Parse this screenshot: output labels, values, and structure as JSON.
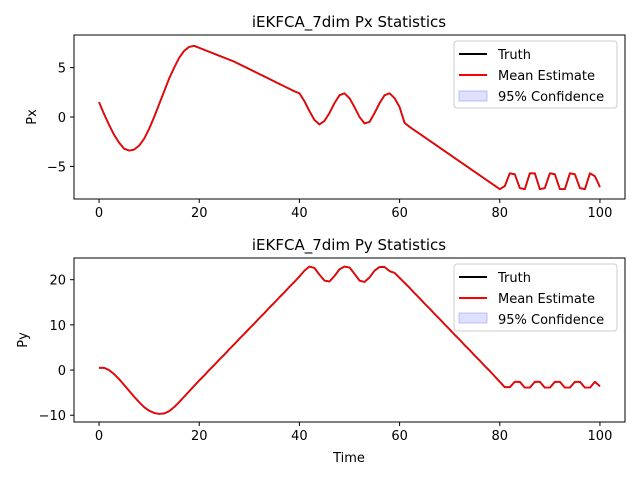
{
  "chart_data": [
    {
      "type": "line",
      "title": "iEKFCA_7dim Px Statistics",
      "xlabel": "",
      "ylabel": "Px",
      "xlim": [
        -5,
        105
      ],
      "ylim": [
        -8.3,
        8.3
      ],
      "xticks": [
        0,
        20,
        40,
        60,
        80,
        100
      ],
      "yticks": [
        -5,
        0,
        5
      ],
      "legend": {
        "position": "top-right",
        "entries": [
          "Truth",
          "Mean Estimate",
          "95% Confidence"
        ]
      },
      "series": [
        {
          "name": "Truth",
          "color": "#000000",
          "kind": "line",
          "x": [
            0,
            1,
            2,
            3,
            4,
            5,
            6,
            7,
            8,
            9,
            10,
            11,
            12,
            13,
            14,
            15,
            16,
            17,
            18,
            19,
            20,
            21,
            22,
            23,
            24,
            25,
            26,
            27,
            28,
            29,
            30,
            31,
            32,
            33,
            34,
            35,
            36,
            37,
            38,
            39,
            40,
            41,
            42,
            43,
            44,
            45,
            46,
            47,
            48,
            49,
            50,
            51,
            52,
            53,
            54,
            55,
            56,
            57,
            58,
            59,
            60,
            61,
            62,
            63,
            64,
            65,
            66,
            67,
            68,
            69,
            70,
            71,
            72,
            73,
            74,
            75,
            76,
            77,
            78,
            79,
            80,
            81,
            82,
            83,
            84,
            85,
            86,
            87,
            88,
            89,
            90,
            91,
            92,
            93,
            94,
            95,
            96,
            97,
            98,
            99,
            100
          ],
          "y": [
            1.5,
            0.3,
            -0.8,
            -1.8,
            -2.6,
            -3.2,
            -3.4,
            -3.3,
            -2.9,
            -2.2,
            -1.2,
            -0.0,
            1.3,
            2.6,
            3.9,
            5.0,
            6.0,
            6.7,
            7.1,
            7.2,
            7.0,
            6.8,
            6.6,
            6.4,
            6.2,
            6.0,
            5.8,
            5.6,
            5.35,
            5.1,
            4.85,
            4.6,
            4.35,
            4.1,
            3.85,
            3.6,
            3.35,
            3.1,
            2.85,
            2.6,
            2.4,
            1.6,
            0.6,
            -0.3,
            -0.75,
            -0.4,
            0.4,
            1.4,
            2.2,
            2.4,
            1.9,
            1.0,
            0.0,
            -0.65,
            -0.5,
            0.4,
            1.4,
            2.2,
            2.4,
            1.9,
            1.0,
            -0.6,
            -1.0,
            -1.35,
            -1.7,
            -2.05,
            -2.4,
            -2.75,
            -3.1,
            -3.45,
            -3.8,
            -4.15,
            -4.5,
            -4.85,
            -5.2,
            -5.55,
            -5.9,
            -6.25,
            -6.6,
            -6.95,
            -7.3,
            -7.0,
            -5.7,
            -5.8,
            -7.2,
            -7.3,
            -5.7,
            -5.7,
            -7.3,
            -7.2,
            -5.7,
            -5.8,
            -7.3,
            -7.3,
            -5.7,
            -5.8,
            -7.2,
            -7.3,
            -5.7,
            -6.0,
            -7.1
          ]
        },
        {
          "name": "Mean Estimate",
          "color": "#ff0000",
          "kind": "line",
          "x": [
            0,
            1,
            2,
            3,
            4,
            5,
            6,
            7,
            8,
            9,
            10,
            11,
            12,
            13,
            14,
            15,
            16,
            17,
            18,
            19,
            20,
            21,
            22,
            23,
            24,
            25,
            26,
            27,
            28,
            29,
            30,
            31,
            32,
            33,
            34,
            35,
            36,
            37,
            38,
            39,
            40,
            41,
            42,
            43,
            44,
            45,
            46,
            47,
            48,
            49,
            50,
            51,
            52,
            53,
            54,
            55,
            56,
            57,
            58,
            59,
            60,
            61,
            62,
            63,
            64,
            65,
            66,
            67,
            68,
            69,
            70,
            71,
            72,
            73,
            74,
            75,
            76,
            77,
            78,
            79,
            80,
            81,
            82,
            83,
            84,
            85,
            86,
            87,
            88,
            89,
            90,
            91,
            92,
            93,
            94,
            95,
            96,
            97,
            98,
            99,
            100
          ],
          "y": [
            1.5,
            0.3,
            -0.8,
            -1.8,
            -2.6,
            -3.2,
            -3.4,
            -3.3,
            -2.9,
            -2.2,
            -1.2,
            -0.0,
            1.3,
            2.6,
            3.9,
            5.0,
            6.0,
            6.7,
            7.1,
            7.2,
            7.0,
            6.8,
            6.6,
            6.4,
            6.2,
            6.0,
            5.8,
            5.6,
            5.35,
            5.1,
            4.85,
            4.6,
            4.35,
            4.1,
            3.85,
            3.6,
            3.35,
            3.1,
            2.85,
            2.6,
            2.4,
            1.6,
            0.6,
            -0.3,
            -0.75,
            -0.4,
            0.4,
            1.4,
            2.2,
            2.4,
            1.9,
            1.0,
            0.0,
            -0.65,
            -0.5,
            0.4,
            1.4,
            2.2,
            2.4,
            1.9,
            1.0,
            -0.6,
            -1.0,
            -1.35,
            -1.7,
            -2.05,
            -2.4,
            -2.75,
            -3.1,
            -3.45,
            -3.8,
            -4.15,
            -4.5,
            -4.85,
            -5.2,
            -5.55,
            -5.9,
            -6.25,
            -6.6,
            -6.95,
            -7.3,
            -7.0,
            -5.7,
            -5.8,
            -7.2,
            -7.3,
            -5.7,
            -5.7,
            -7.3,
            -7.2,
            -5.7,
            -5.8,
            -7.3,
            -7.3,
            -5.7,
            -5.8,
            -7.2,
            -7.3,
            -5.7,
            -6.0,
            -7.1
          ]
        }
      ]
    },
    {
      "type": "line",
      "title": "iEKFCA_7dim Py Statistics",
      "xlabel": "Time",
      "ylabel": "Py",
      "xlim": [
        -5,
        105
      ],
      "ylim": [
        -11.5,
        24.8
      ],
      "xticks": [
        0,
        20,
        40,
        60,
        80,
        100
      ],
      "yticks": [
        -10,
        0,
        10,
        20
      ],
      "legend": {
        "position": "top-right",
        "entries": [
          "Truth",
          "Mean Estimate",
          "95% Confidence"
        ]
      },
      "series": [
        {
          "name": "Truth",
          "color": "#000000",
          "kind": "line",
          "x": [
            0,
            1,
            2,
            3,
            4,
            5,
            6,
            7,
            8,
            9,
            10,
            11,
            12,
            13,
            14,
            15,
            16,
            17,
            18,
            19,
            20,
            21,
            22,
            23,
            24,
            25,
            26,
            27,
            28,
            29,
            30,
            31,
            32,
            33,
            34,
            35,
            36,
            37,
            38,
            39,
            40,
            41,
            42,
            43,
            44,
            45,
            46,
            47,
            48,
            49,
            50,
            51,
            52,
            53,
            54,
            55,
            56,
            57,
            58,
            59,
            60,
            61,
            62,
            63,
            64,
            65,
            66,
            67,
            68,
            69,
            70,
            71,
            72,
            73,
            74,
            75,
            76,
            77,
            78,
            79,
            80,
            81,
            82,
            83,
            84,
            85,
            86,
            87,
            88,
            89,
            90,
            91,
            92,
            93,
            94,
            95,
            96,
            97,
            98,
            99,
            100
          ],
          "y": [
            0.5,
            0.5,
            0.0,
            -0.9,
            -2.0,
            -3.3,
            -4.6,
            -5.9,
            -7.1,
            -8.2,
            -9.0,
            -9.5,
            -9.7,
            -9.6,
            -9.1,
            -8.2,
            -7.1,
            -5.9,
            -4.7,
            -3.5,
            -2.3,
            -1.2,
            0.0,
            1.1,
            2.3,
            3.4,
            4.6,
            5.7,
            6.9,
            8.0,
            9.2,
            10.3,
            11.5,
            12.6,
            13.8,
            14.9,
            16.1,
            17.2,
            18.4,
            19.5,
            20.7,
            22.0,
            22.9,
            22.6,
            21.1,
            19.8,
            19.6,
            20.8,
            22.3,
            22.9,
            22.7,
            21.3,
            19.8,
            19.5,
            20.5,
            22.0,
            22.8,
            22.8,
            21.9,
            21.5,
            20.4,
            19.3,
            18.2,
            17.0,
            15.9,
            14.7,
            13.6,
            12.4,
            11.3,
            10.1,
            9.0,
            7.8,
            6.7,
            5.5,
            4.4,
            3.2,
            2.1,
            0.9,
            -0.2,
            -1.4,
            -2.6,
            -3.8,
            -3.8,
            -2.6,
            -2.6,
            -3.9,
            -3.9,
            -2.6,
            -2.6,
            -3.9,
            -3.9,
            -2.6,
            -2.6,
            -3.9,
            -3.9,
            -2.6,
            -2.6,
            -3.9,
            -3.9,
            -2.6,
            -3.6
          ]
        },
        {
          "name": "Mean Estimate",
          "color": "#ff0000",
          "kind": "line",
          "x": [
            0,
            1,
            2,
            3,
            4,
            5,
            6,
            7,
            8,
            9,
            10,
            11,
            12,
            13,
            14,
            15,
            16,
            17,
            18,
            19,
            20,
            21,
            22,
            23,
            24,
            25,
            26,
            27,
            28,
            29,
            30,
            31,
            32,
            33,
            34,
            35,
            36,
            37,
            38,
            39,
            40,
            41,
            42,
            43,
            44,
            45,
            46,
            47,
            48,
            49,
            50,
            51,
            52,
            53,
            54,
            55,
            56,
            57,
            58,
            59,
            60,
            61,
            62,
            63,
            64,
            65,
            66,
            67,
            68,
            69,
            70,
            71,
            72,
            73,
            74,
            75,
            76,
            77,
            78,
            79,
            80,
            81,
            82,
            83,
            84,
            85,
            86,
            87,
            88,
            89,
            90,
            91,
            92,
            93,
            94,
            95,
            96,
            97,
            98,
            99,
            100
          ],
          "y": [
            0.5,
            0.5,
            0.0,
            -0.9,
            -2.0,
            -3.3,
            -4.6,
            -5.9,
            -7.1,
            -8.2,
            -9.0,
            -9.5,
            -9.7,
            -9.6,
            -9.1,
            -8.2,
            -7.1,
            -5.9,
            -4.7,
            -3.5,
            -2.3,
            -1.2,
            0.0,
            1.1,
            2.3,
            3.4,
            4.6,
            5.7,
            6.9,
            8.0,
            9.2,
            10.3,
            11.5,
            12.6,
            13.8,
            14.9,
            16.1,
            17.2,
            18.4,
            19.5,
            20.7,
            22.0,
            22.9,
            22.6,
            21.1,
            19.8,
            19.6,
            20.8,
            22.3,
            22.9,
            22.7,
            21.3,
            19.8,
            19.5,
            20.5,
            22.0,
            22.8,
            22.8,
            21.9,
            21.5,
            20.4,
            19.3,
            18.2,
            17.0,
            15.9,
            14.7,
            13.6,
            12.4,
            11.3,
            10.1,
            9.0,
            7.8,
            6.7,
            5.5,
            4.4,
            3.2,
            2.1,
            0.9,
            -0.2,
            -1.4,
            -2.6,
            -3.8,
            -3.8,
            -2.6,
            -2.6,
            -3.9,
            -3.9,
            -2.6,
            -2.6,
            -3.9,
            -3.9,
            -2.6,
            -2.6,
            -3.9,
            -3.9,
            -2.6,
            -2.6,
            -3.9,
            -3.9,
            -2.6,
            -3.6
          ]
        }
      ]
    }
  ],
  "colors": {
    "truth": "#000000",
    "mean": "#ff0000",
    "confidence_fill": "#6666ff",
    "confidence_edge": "#8a8aff"
  }
}
